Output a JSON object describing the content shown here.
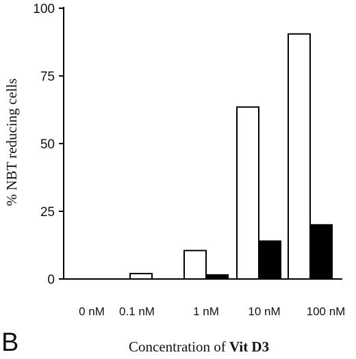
{
  "panel_label": "B",
  "chart_data": {
    "type": "bar",
    "categories": [
      "0 nM",
      "0.1 nM",
      "1 nM",
      "10 nM",
      "100 nM"
    ],
    "series": [
      {
        "values": [
          0,
          2,
          10.5,
          63.5,
          90.5
        ],
        "color": "#ffffff",
        "stroke": "#000000"
      },
      {
        "values": [
          0,
          0,
          1.5,
          14,
          20
        ],
        "color": "#000000",
        "stroke": "#000000"
      }
    ],
    "ylabel": "% NBT reducing cells",
    "xlabel_prefix": "Concentration of ",
    "xlabel_bold": "Vit  D3",
    "ylim": [
      0,
      100
    ],
    "yticks": [
      0,
      25,
      50,
      75,
      100
    ],
    "grid": false
  }
}
